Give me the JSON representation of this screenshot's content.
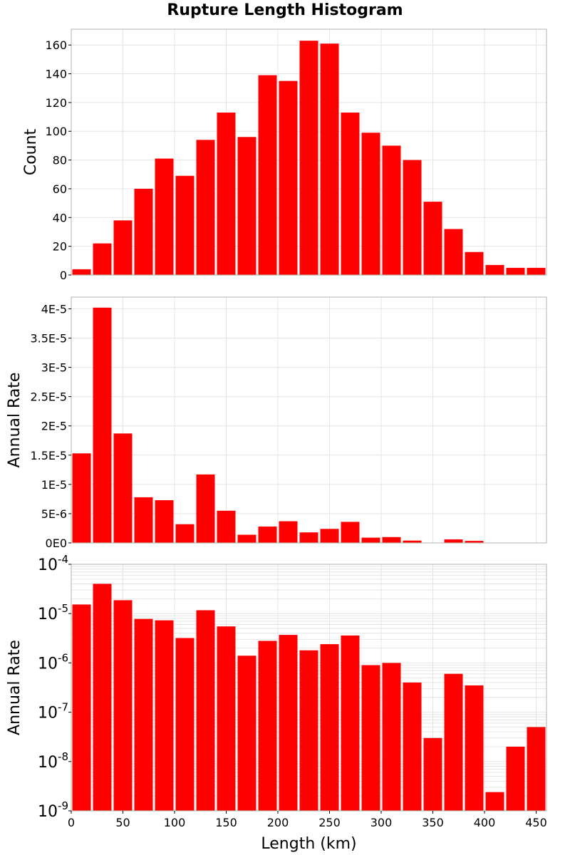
{
  "title": "Rupture Length Histogram",
  "colors": {
    "bar": "#ff0000",
    "grid": "#e4e4e4",
    "frame": "#b0b0b0",
    "background": "#ffffff"
  },
  "chart_data": [
    {
      "type": "bar",
      "title": "Rupture Length Histogram",
      "xlabel": "",
      "ylabel": "Count",
      "bin_width": 20,
      "x": [
        10,
        30,
        50,
        70,
        90,
        110,
        130,
        150,
        170,
        190,
        210,
        230,
        250,
        270,
        290,
        310,
        330,
        350,
        370,
        390,
        410,
        430,
        450
      ],
      "values": [
        4,
        22,
        38,
        60,
        81,
        69,
        94,
        113,
        96,
        139,
        135,
        163,
        161,
        113,
        99,
        90,
        80,
        51,
        32,
        16,
        7,
        5,
        5
      ],
      "ylim": [
        0,
        171
      ],
      "yticks": [
        0,
        20,
        40,
        60,
        80,
        100,
        120,
        140,
        160
      ],
      "ytick_labels": [
        "0",
        "20",
        "40",
        "60",
        "80",
        "100",
        "120",
        "140",
        "160"
      ],
      "grid": true,
      "yscale": "linear"
    },
    {
      "type": "bar",
      "xlabel": "",
      "ylabel": "Annual Rate",
      "bin_width": 20,
      "x": [
        10,
        30,
        50,
        70,
        90,
        110,
        130,
        150,
        170,
        190,
        210,
        230,
        250,
        270,
        290,
        310,
        330,
        350,
        370,
        390,
        410,
        430,
        450
      ],
      "values": [
        1.53e-05,
        4.02e-05,
        1.87e-05,
        7.8e-06,
        7.3e-06,
        3.2e-06,
        1.17e-05,
        5.5e-06,
        1.4e-06,
        2.8e-06,
        3.7e-06,
        1.8e-06,
        2.4e-06,
        3.6e-06,
        9e-07,
        1e-06,
        4e-07,
        3e-08,
        6e-07,
        3.5e-07,
        2.4e-09,
        2e-08,
        5e-08
      ],
      "ylim": [
        0,
        4.2e-05
      ],
      "yticks": [
        0,
        5e-06,
        1e-05,
        1.5e-05,
        2e-05,
        2.5e-05,
        3e-05,
        3.5e-05,
        4e-05
      ],
      "ytick_labels": [
        "0E0",
        "5E-6",
        "1E-5",
        "1.5E-5",
        "2E-5",
        "2.5E-5",
        "3E-5",
        "3.5E-5",
        "4E-5"
      ],
      "grid": true,
      "yscale": "linear"
    },
    {
      "type": "bar",
      "xlabel": "Length (km)",
      "ylabel": "Annual Rate",
      "bin_width": 20,
      "x": [
        10,
        30,
        50,
        70,
        90,
        110,
        130,
        150,
        170,
        190,
        210,
        230,
        250,
        270,
        290,
        310,
        330,
        350,
        370,
        390,
        410,
        430,
        450
      ],
      "values": [
        1.53e-05,
        4.02e-05,
        1.87e-05,
        7.8e-06,
        7.3e-06,
        3.2e-06,
        1.17e-05,
        5.5e-06,
        1.4e-06,
        2.8e-06,
        3.7e-06,
        1.8e-06,
        2.4e-06,
        3.6e-06,
        9e-07,
        1e-06,
        4e-07,
        3e-08,
        6e-07,
        3.5e-07,
        2.4e-09,
        2e-08,
        5e-08
      ],
      "ylim": [
        1e-09,
        0.0001
      ],
      "yticks": [
        1e-09,
        1e-08,
        1e-07,
        1e-06,
        1e-05,
        0.0001
      ],
      "ytick_base": [
        "10",
        "10",
        "10",
        "10",
        "10",
        "10"
      ],
      "ytick_exp": [
        "-9",
        "-8",
        "-7",
        "-6",
        "-5",
        "-4"
      ],
      "grid": true,
      "yscale": "log"
    }
  ],
  "xaxis": {
    "xlim": [
      0,
      460
    ],
    "xticks": [
      0,
      50,
      100,
      150,
      200,
      250,
      300,
      350,
      400,
      450
    ],
    "xtick_labels": [
      "0",
      "50",
      "100",
      "150",
      "200",
      "250",
      "300",
      "350",
      "400",
      "450"
    ],
    "xlabel": "Length (km)"
  }
}
